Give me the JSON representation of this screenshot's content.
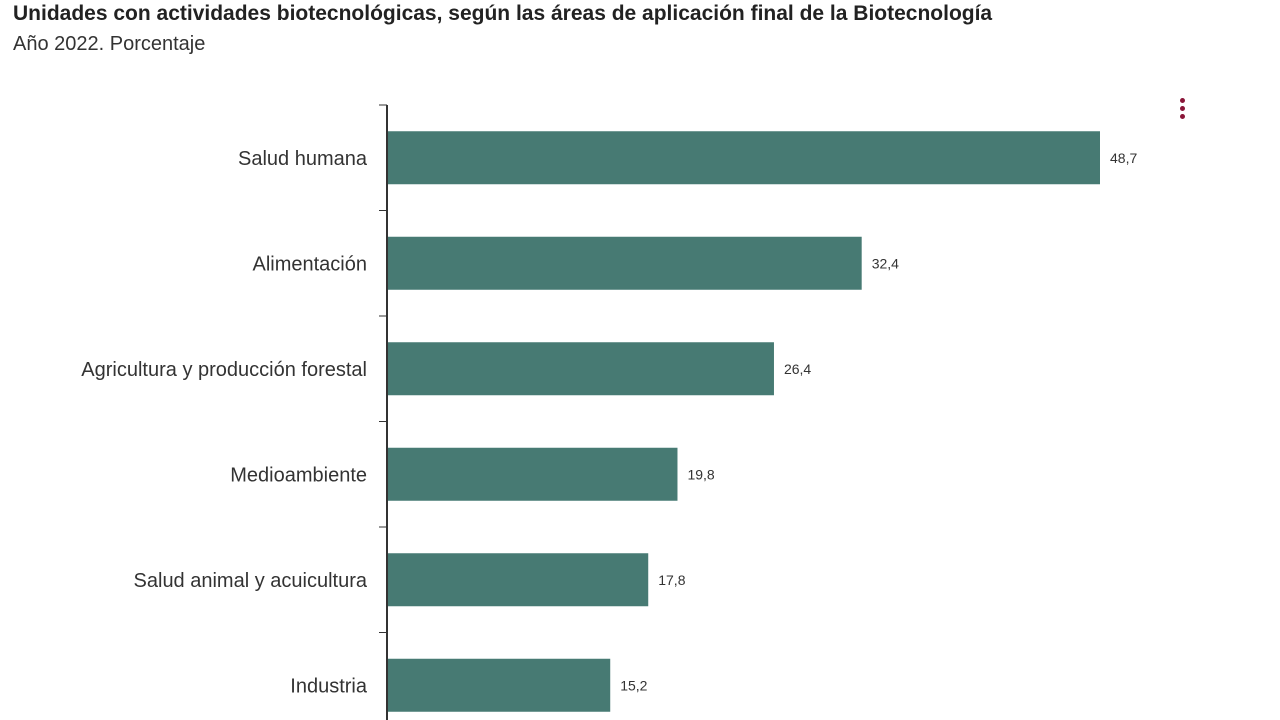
{
  "title": "Unidades con actividades biotecnológicas, según las áreas de aplicación final de la Biotecnología",
  "subtitle": "Año 2022. Porcentaje",
  "menu_icon": "vertical-ellipsis-icon",
  "colors": {
    "bar": "#477a73",
    "menu": "#8a1538",
    "axis": "#333333"
  },
  "chart_data": {
    "type": "bar",
    "orientation": "horizontal",
    "categories": [
      "Salud humana",
      "Alimentación",
      "Agricultura y producción forestal",
      "Medioambiente",
      "Salud animal y acuicultura",
      "Industria"
    ],
    "values": [
      48.7,
      32.4,
      26.4,
      19.8,
      17.8,
      15.2
    ],
    "value_labels": [
      "48,7",
      "32,4",
      "26,4",
      "19,8",
      "17,8",
      "15,2"
    ],
    "title": "Unidades con actividades biotecnológicas, según las áreas de aplicación final de la Biotecnología",
    "subtitle": "Año 2022. Porcentaje",
    "xlim": [
      0,
      50
    ],
    "grid": false,
    "legend": "none"
  }
}
